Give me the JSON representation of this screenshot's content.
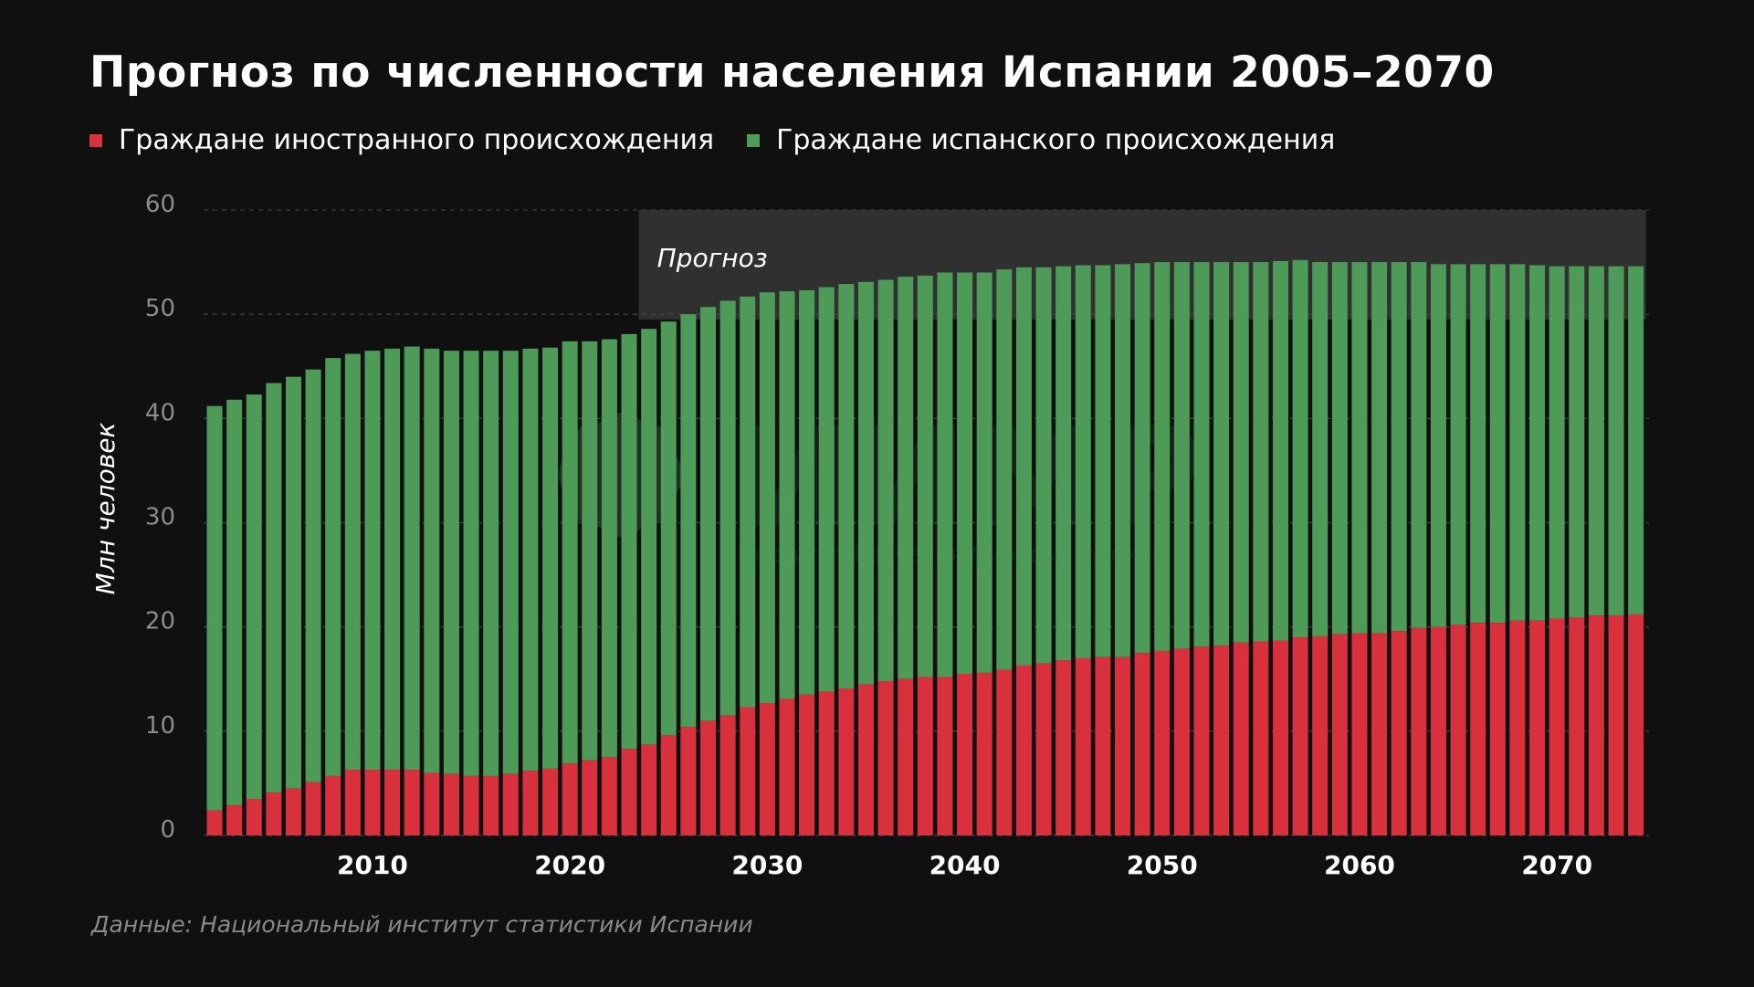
{
  "title": "Прогноз по численности населения Испании 2005–2070",
  "source": "Данные: Национальный институт статистики Испании",
  "colors": {
    "background": "#101010",
    "foreign": "#d9303d",
    "spanish": "#4e9a58",
    "forecast_band": "#303030",
    "grid": "#3e3e3e",
    "tick_text": "#8c8c8c",
    "x_tick_text": "#ffffff"
  },
  "chart_data": {
    "type": "bar",
    "stacked": true,
    "title": "Прогноз по численности населения Испании 2005–2070",
    "ylabel": "Млн человек",
    "xlabel": "",
    "ylim": [
      0,
      60
    ],
    "yticks": [
      0,
      10,
      20,
      30,
      40,
      50,
      60
    ],
    "xtick_labels": [
      "2010",
      "2020",
      "2030",
      "2040",
      "2050",
      "2060",
      "2070"
    ],
    "grid": true,
    "legend_position": "top-left",
    "forecast_label": "Прогноз",
    "forecast_start": 2024,
    "forecast_end": 2074,
    "categories": [
      2002,
      2003,
      2004,
      2005,
      2006,
      2007,
      2008,
      2009,
      2010,
      2011,
      2012,
      2013,
      2014,
      2015,
      2016,
      2017,
      2018,
      2019,
      2020,
      2021,
      2022,
      2023,
      2024,
      2025,
      2026,
      2027,
      2028,
      2029,
      2030,
      2031,
      2032,
      2033,
      2034,
      2035,
      2036,
      2037,
      2038,
      2039,
      2040,
      2041,
      2042,
      2043,
      2044,
      2045,
      2046,
      2047,
      2048,
      2049,
      2050,
      2051,
      2052,
      2053,
      2054,
      2055,
      2056,
      2057,
      2058,
      2059,
      2060,
      2061,
      2062,
      2063,
      2064,
      2065,
      2066,
      2067,
      2068,
      2069,
      2070,
      2071,
      2072,
      2073,
      2074
    ],
    "series": [
      {
        "name": "Граждане иностранного происхождения",
        "color": "#d9303d",
        "values": [
          2.4,
          2.9,
          3.5,
          4.1,
          4.5,
          5.1,
          5.7,
          6.3,
          6.3,
          6.3,
          6.3,
          6.0,
          5.9,
          5.7,
          5.7,
          5.9,
          6.2,
          6.4,
          6.9,
          7.2,
          7.5,
          8.3,
          8.7,
          9.6,
          10.4,
          11.0,
          11.5,
          12.3,
          12.7,
          13.1,
          13.5,
          13.8,
          14.1,
          14.5,
          14.8,
          15.0,
          15.2,
          15.2,
          15.5,
          15.6,
          15.9,
          16.3,
          16.5,
          16.8,
          17.0,
          17.1,
          17.1,
          17.5,
          17.7,
          17.9,
          18.1,
          18.2,
          18.5,
          18.6,
          18.7,
          19.0,
          19.1,
          19.3,
          19.4,
          19.4,
          19.6,
          19.9,
          20.0,
          20.2,
          20.4,
          20.4,
          20.6,
          20.6,
          20.8,
          20.9,
          21.1,
          21.1,
          21.2
        ]
      },
      {
        "name": "Граждане испанского происхождения",
        "color": "#4e9a58",
        "values": [
          38.8,
          38.9,
          38.8,
          39.3,
          39.5,
          39.6,
          40.1,
          39.9,
          40.2,
          40.4,
          40.6,
          40.7,
          40.6,
          40.8,
          40.8,
          40.6,
          40.5,
          40.4,
          40.5,
          40.2,
          40.1,
          39.8,
          39.9,
          39.7,
          39.6,
          39.7,
          39.8,
          39.4,
          39.4,
          39.1,
          38.8,
          38.8,
          38.8,
          38.6,
          38.5,
          38.6,
          38.5,
          38.8,
          38.5,
          38.4,
          38.4,
          38.2,
          38.0,
          37.8,
          37.7,
          37.6,
          37.7,
          37.4,
          37.3,
          37.1,
          36.9,
          36.8,
          36.5,
          36.4,
          36.4,
          36.2,
          35.9,
          35.7,
          35.6,
          35.6,
          35.4,
          35.1,
          34.8,
          34.6,
          34.4,
          34.4,
          34.2,
          34.1,
          33.8,
          33.7,
          33.5,
          33.5,
          33.4
        ]
      }
    ]
  },
  "watermark": {
    "text_main": "ИИМР",
    "text_sub": "Институт Изучения Мировых Рынков"
  }
}
